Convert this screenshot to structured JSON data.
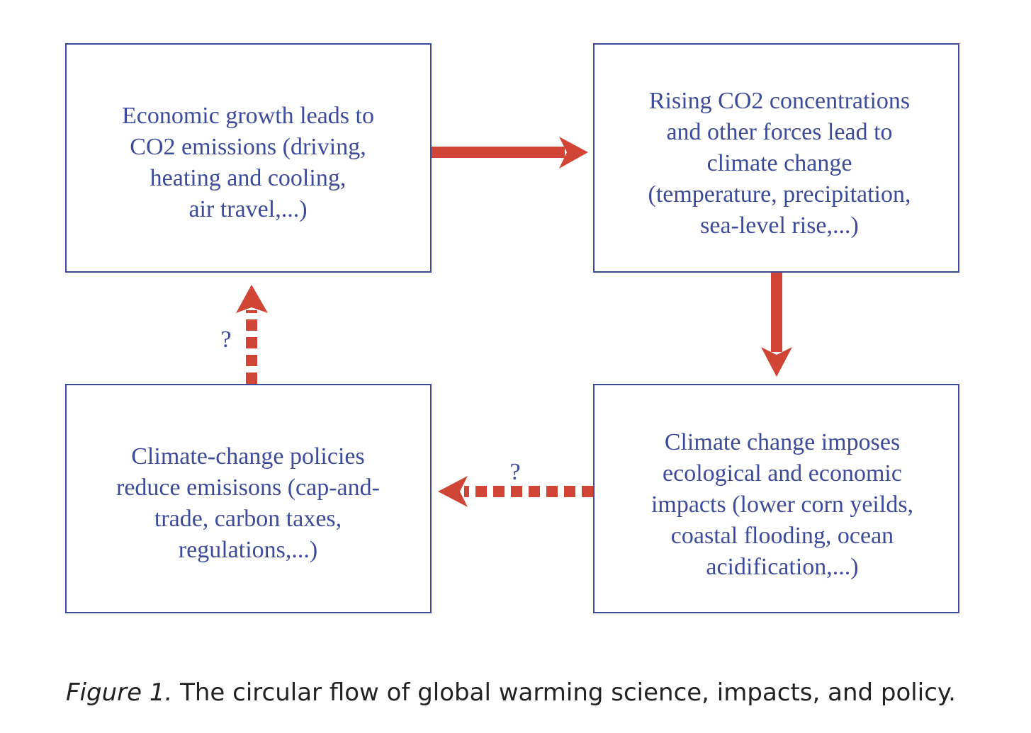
{
  "colors": {
    "box": "#3c4b9a",
    "arrow": "#d04535",
    "text": "#3c4b9a"
  },
  "boxes": {
    "top_left": {
      "lines": [
        "Economic growth leads to",
        "CO2 emissions (driving,",
        "heating and cooling,",
        "air travel,...)"
      ]
    },
    "top_right": {
      "lines": [
        "Rising CO2 concentrations",
        "and other forces lead to",
        "climate change",
        "(temperature, precipitation,",
        "sea-level rise,...)"
      ]
    },
    "bottom_right": {
      "lines": [
        "Climate change imposes",
        "ecological and economic",
        "impacts (lower corn yeilds,",
        "coastal flooding, ocean",
        "acidification,...)"
      ]
    },
    "bottom_left": {
      "lines": [
        "Climate-change policies",
        "reduce emisisons (cap-and-",
        "trade, carbon taxes,",
        "regulations,...)"
      ]
    }
  },
  "arrows": {
    "emissions_to_climate": {
      "style": "solid"
    },
    "climate_to_impacts": {
      "style": "solid"
    },
    "impacts_to_policies": {
      "style": "dashed",
      "label": "?"
    },
    "policies_to_growth": {
      "style": "dashed",
      "label": "?"
    }
  },
  "caption": {
    "label": "Figure 1.",
    "text": " The circular flow of global warming science, impacts, and policy."
  }
}
